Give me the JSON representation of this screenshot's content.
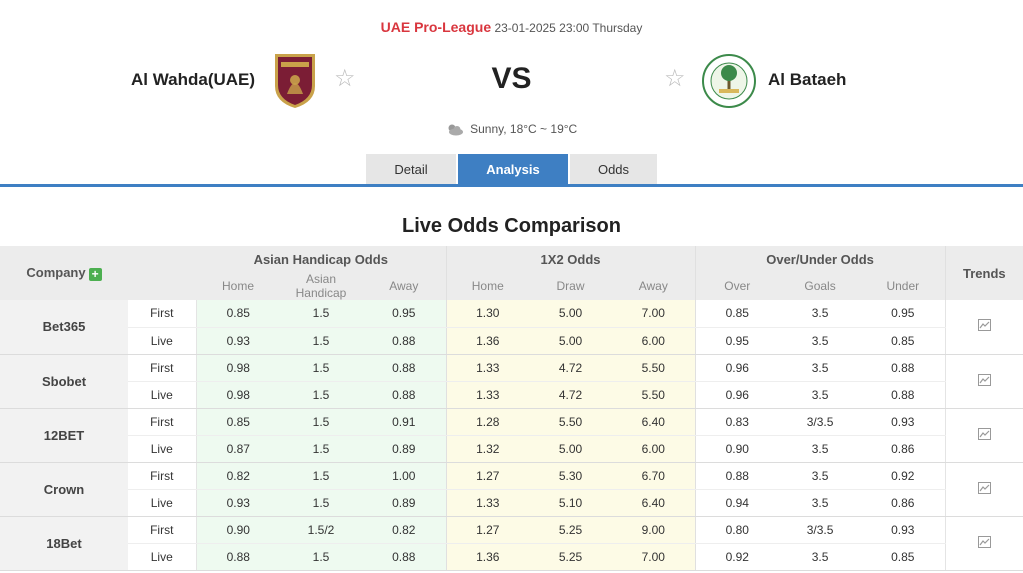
{
  "match": {
    "league": "UAE Pro-League",
    "datetime": "23-01-2025 23:00 Thursday",
    "home_team": "Al Wahda(UAE)",
    "away_team": "Al Bataeh",
    "vs": "VS",
    "weather": "Sunny, 18°C ~ 19°C"
  },
  "tabs": [
    {
      "label": "Detail"
    },
    {
      "label": "Analysis",
      "active": true
    },
    {
      "label": "Odds"
    }
  ],
  "section_title": "Live Odds Comparison",
  "table": {
    "company_header": "Company",
    "group_headers": [
      "Asian Handicap Odds",
      "1X2 Odds",
      "Over/Under Odds",
      "Trends"
    ],
    "sub_headers": [
      "Home",
      "Asian Handicap",
      "Away",
      "Home",
      "Draw",
      "Away",
      "Over",
      "Goals",
      "Under"
    ],
    "rows": [
      {
        "company": "Bet365",
        "lines": [
          {
            "kind": "First",
            "v": [
              "0.85",
              "1.5",
              "0.95",
              "1.30",
              "5.00",
              "7.00",
              "0.85",
              "3.5",
              "0.95"
            ]
          },
          {
            "kind": "Live",
            "v": [
              "0.93",
              "1.5",
              "0.88",
              "1.36",
              "5.00",
              "6.00",
              "0.95",
              "3.5",
              "0.85"
            ]
          }
        ]
      },
      {
        "company": "Sbobet",
        "lines": [
          {
            "kind": "First",
            "v": [
              "0.98",
              "1.5",
              "0.88",
              "1.33",
              "4.72",
              "5.50",
              "0.96",
              "3.5",
              "0.88"
            ]
          },
          {
            "kind": "Live",
            "v": [
              "0.98",
              "1.5",
              "0.88",
              "1.33",
              "4.72",
              "5.50",
              "0.96",
              "3.5",
              "0.88"
            ]
          }
        ]
      },
      {
        "company": "12BET",
        "lines": [
          {
            "kind": "First",
            "v": [
              "0.85",
              "1.5",
              "0.91",
              "1.28",
              "5.50",
              "6.40",
              "0.83",
              "3/3.5",
              "0.93"
            ]
          },
          {
            "kind": "Live",
            "v": [
              "0.87",
              "1.5",
              "0.89",
              "1.32",
              "5.00",
              "6.00",
              "0.90",
              "3.5",
              "0.86"
            ]
          }
        ]
      },
      {
        "company": "Crown",
        "lines": [
          {
            "kind": "First",
            "v": [
              "0.82",
              "1.5",
              "1.00",
              "1.27",
              "5.30",
              "6.70",
              "0.88",
              "3.5",
              "0.92"
            ]
          },
          {
            "kind": "Live",
            "v": [
              "0.93",
              "1.5",
              "0.89",
              "1.33",
              "5.10",
              "6.40",
              "0.94",
              "3.5",
              "0.86"
            ]
          }
        ]
      },
      {
        "company": "18Bet",
        "lines": [
          {
            "kind": "First",
            "v": [
              "0.90",
              "1.5/2",
              "0.82",
              "1.27",
              "5.25",
              "9.00",
              "0.80",
              "3/3.5",
              "0.93"
            ]
          },
          {
            "kind": "Live",
            "v": [
              "0.88",
              "1.5",
              "0.88",
              "1.36",
              "5.25",
              "7.00",
              "0.92",
              "3.5",
              "0.85"
            ]
          }
        ]
      }
    ]
  },
  "colors": {
    "accent": "#3e7fc3",
    "league": "#d9363e",
    "plus": "#4caf50",
    "ah_bg": "#eefaf0",
    "x12_bg": "#fdfbe6"
  },
  "icons": {
    "weather": "cloud-sun-icon",
    "favorite": "star-icon",
    "add": "plus-icon",
    "trend": "line-chart-icon"
  }
}
